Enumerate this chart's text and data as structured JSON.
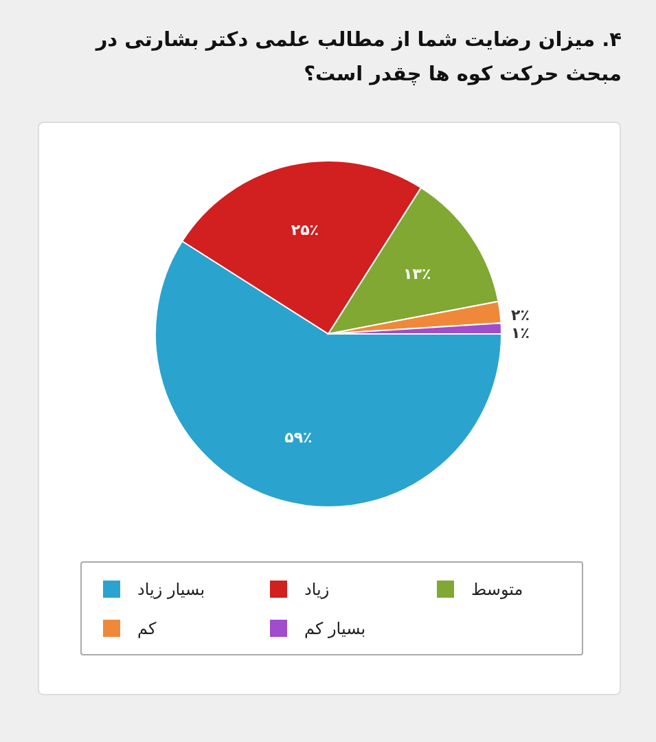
{
  "chart_data": {
    "type": "pie",
    "title": "۴. میزان رضایت شما از مطالب علمی دکتر بشارتی در مبحث حرکت کوه ها چقدر است؟",
    "categories": [
      "بسیار زیاد",
      "زیاد",
      "متوسط",
      "کم",
      "بسیار کم"
    ],
    "values": [
      59,
      25,
      13,
      2,
      1
    ],
    "value_labels": [
      "۵۹٪",
      "۲۵٪",
      "۱۳٪",
      "۲٪",
      "۱٪"
    ],
    "colors": [
      "#2ba3cf",
      "#d21f1f",
      "#80a832",
      "#f0883a",
      "#a04ccc"
    ],
    "legend": "bottom"
  }
}
